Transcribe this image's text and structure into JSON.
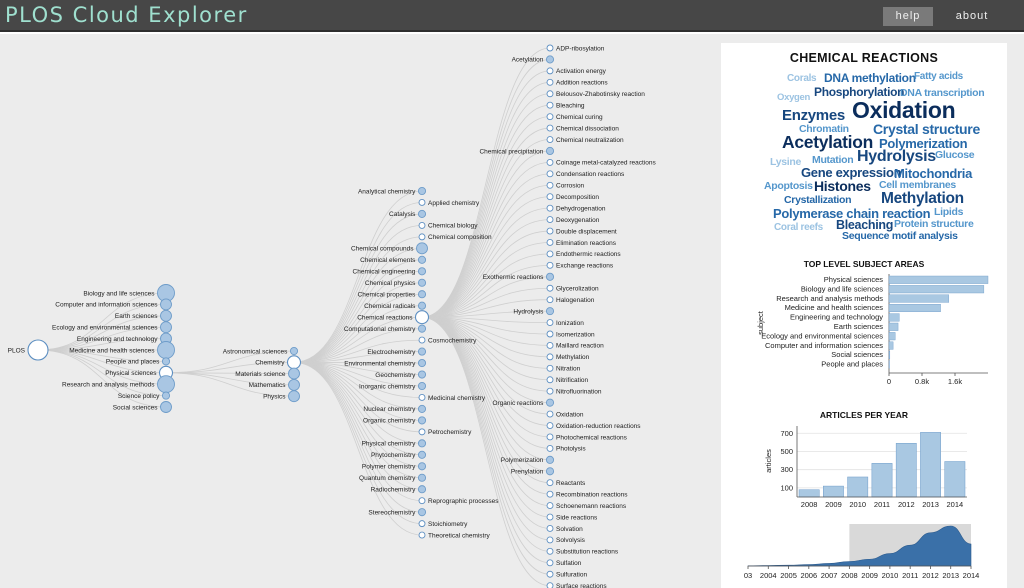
{
  "header": {
    "app_title": "PLOS Cloud Explorer",
    "nav": {
      "help": "help",
      "about": "about"
    }
  },
  "tree": {
    "root": {
      "label": "PLOS"
    },
    "level1": [
      {
        "label": "Biology and life sciences",
        "size": "xl"
      },
      {
        "label": "Computer and information sciences",
        "size": "md"
      },
      {
        "label": "Earth sciences",
        "size": "md"
      },
      {
        "label": "Ecology and environmental sciences",
        "size": "md"
      },
      {
        "label": "Engineering and technology",
        "size": "md"
      },
      {
        "label": "Medicine and health sciences",
        "size": "xl"
      },
      {
        "label": "People and places",
        "size": "sm"
      },
      {
        "label": "Physical sciences",
        "size": "open"
      },
      {
        "label": "Research and analysis methods",
        "size": "xl"
      },
      {
        "label": "Science policy",
        "size": "sm"
      },
      {
        "label": "Social sciences",
        "size": "md"
      }
    ],
    "level2": [
      {
        "label": "Astronomical sciences",
        "size": "sm"
      },
      {
        "label": "Chemistry",
        "size": "open"
      },
      {
        "label": "Materials science",
        "size": "md"
      },
      {
        "label": "Mathematics",
        "size": "md"
      },
      {
        "label": "Physics",
        "size": "md"
      }
    ],
    "level3": [
      {
        "label": "Analytical chemistry",
        "side": "L",
        "size": "sm"
      },
      {
        "label": "Applied chemistry",
        "side": "R",
        "size": "leaf"
      },
      {
        "label": "Catalysis",
        "side": "L",
        "size": "sm"
      },
      {
        "label": "Chemical biology",
        "side": "R",
        "size": "leaf"
      },
      {
        "label": "Chemical composition",
        "side": "R",
        "size": "leaf"
      },
      {
        "label": "Chemical compounds",
        "side": "L",
        "size": "md"
      },
      {
        "label": "Chemical elements",
        "side": "L",
        "size": "sm"
      },
      {
        "label": "Chemical engineering",
        "side": "L",
        "size": "sm"
      },
      {
        "label": "Chemical physics",
        "side": "L",
        "size": "sm"
      },
      {
        "label": "Chemical properties",
        "side": "L",
        "size": "sm"
      },
      {
        "label": "Chemical radicals",
        "side": "L",
        "size": "sm"
      },
      {
        "label": "Chemical reactions",
        "side": "L",
        "size": "open"
      },
      {
        "label": "Computational chemistry",
        "side": "L",
        "size": "sm"
      },
      {
        "label": "Cosmochemistry",
        "side": "R",
        "size": "leaf"
      },
      {
        "label": "Electrochemistry",
        "side": "L",
        "size": "sm"
      },
      {
        "label": "Environmental chemistry",
        "side": "L",
        "size": "sm"
      },
      {
        "label": "Geochemistry",
        "side": "L",
        "size": "sm"
      },
      {
        "label": "Inorganic chemistry",
        "side": "L",
        "size": "sm"
      },
      {
        "label": "Medicinal chemistry",
        "side": "R",
        "size": "leaf"
      },
      {
        "label": "Nuclear chemistry",
        "side": "L",
        "size": "sm"
      },
      {
        "label": "Organic chemistry",
        "side": "L",
        "size": "sm"
      },
      {
        "label": "Petrochemistry",
        "side": "R",
        "size": "leaf"
      },
      {
        "label": "Physical chemistry",
        "side": "L",
        "size": "sm"
      },
      {
        "label": "Phytochemistry",
        "side": "L",
        "size": "sm"
      },
      {
        "label": "Polymer chemistry",
        "side": "L",
        "size": "sm"
      },
      {
        "label": "Quantum chemistry",
        "side": "L",
        "size": "sm"
      },
      {
        "label": "Radiochemistry",
        "side": "L",
        "size": "sm"
      },
      {
        "label": "Reprographic processes",
        "side": "R",
        "size": "leaf"
      },
      {
        "label": "Stereochemistry",
        "side": "L",
        "size": "sm"
      },
      {
        "label": "Stoichiometry",
        "side": "R",
        "size": "leaf"
      },
      {
        "label": "Theoretical chemistry",
        "side": "R",
        "size": "leaf"
      }
    ],
    "level4": [
      {
        "label": "ADP-ribosylation",
        "side": "R",
        "size": "leaf"
      },
      {
        "label": "Acetylation",
        "side": "L",
        "size": "sm"
      },
      {
        "label": "Activation energy",
        "side": "R",
        "size": "leaf"
      },
      {
        "label": "Addition reactions",
        "side": "R",
        "size": "leaf"
      },
      {
        "label": "Belousov-Zhabotinsky reaction",
        "side": "R",
        "size": "leaf"
      },
      {
        "label": "Bleaching",
        "side": "R",
        "size": "leaf"
      },
      {
        "label": "Chemical curing",
        "side": "R",
        "size": "leaf"
      },
      {
        "label": "Chemical dissociation",
        "side": "R",
        "size": "leaf"
      },
      {
        "label": "Chemical neutralization",
        "side": "R",
        "size": "leaf"
      },
      {
        "label": "Chemical precipitation",
        "side": "L",
        "size": "sm"
      },
      {
        "label": "Coinage metal-catalyzed reactions",
        "side": "R",
        "size": "leaf"
      },
      {
        "label": "Condensation reactions",
        "side": "R",
        "size": "leaf"
      },
      {
        "label": "Corrosion",
        "side": "R",
        "size": "leaf"
      },
      {
        "label": "Decomposition",
        "side": "R",
        "size": "leaf"
      },
      {
        "label": "Dehydrogenation",
        "side": "R",
        "size": "leaf"
      },
      {
        "label": "Deoxygenation",
        "side": "R",
        "size": "leaf"
      },
      {
        "label": "Double displacement",
        "side": "R",
        "size": "leaf"
      },
      {
        "label": "Elimination reactions",
        "side": "R",
        "size": "leaf"
      },
      {
        "label": "Endothermic reactions",
        "side": "R",
        "size": "leaf"
      },
      {
        "label": "Exchange reactions",
        "side": "R",
        "size": "leaf"
      },
      {
        "label": "Exothermic reactions",
        "side": "L",
        "size": "sm"
      },
      {
        "label": "Glycerolization",
        "side": "R",
        "size": "leaf"
      },
      {
        "label": "Halogenation",
        "side": "R",
        "size": "leaf"
      },
      {
        "label": "Hydrolysis",
        "side": "L",
        "size": "sm"
      },
      {
        "label": "Ionization",
        "side": "R",
        "size": "leaf"
      },
      {
        "label": "Isomerization",
        "side": "R",
        "size": "leaf"
      },
      {
        "label": "Maillard reaction",
        "side": "R",
        "size": "leaf"
      },
      {
        "label": "Methylation",
        "side": "R",
        "size": "leaf"
      },
      {
        "label": "Nitration",
        "side": "R",
        "size": "leaf"
      },
      {
        "label": "Nitrification",
        "side": "R",
        "size": "leaf"
      },
      {
        "label": "Nitrofluorination",
        "side": "R",
        "size": "leaf"
      },
      {
        "label": "Organic reactions",
        "side": "L",
        "size": "sm"
      },
      {
        "label": "Oxidation",
        "side": "R",
        "size": "leaf"
      },
      {
        "label": "Oxidation-reduction reactions",
        "side": "R",
        "size": "leaf"
      },
      {
        "label": "Photochemical reactions",
        "side": "R",
        "size": "leaf"
      },
      {
        "label": "Photolysis",
        "side": "R",
        "size": "leaf"
      },
      {
        "label": "Polymerization",
        "side": "L",
        "size": "sm"
      },
      {
        "label": "Prenylation",
        "side": "L",
        "size": "sm"
      },
      {
        "label": "Reactants",
        "side": "R",
        "size": "leaf"
      },
      {
        "label": "Recombination reactions",
        "side": "R",
        "size": "leaf"
      },
      {
        "label": "Schoenemann reactions",
        "side": "R",
        "size": "leaf"
      },
      {
        "label": "Side reactions",
        "side": "R",
        "size": "leaf"
      },
      {
        "label": "Solvation",
        "side": "R",
        "size": "leaf"
      },
      {
        "label": "Solvolysis",
        "side": "R",
        "size": "leaf"
      },
      {
        "label": "Substitution reactions",
        "side": "R",
        "size": "leaf"
      },
      {
        "label": "Sulfation",
        "side": "R",
        "size": "leaf"
      },
      {
        "label": "Sulfuration",
        "side": "R",
        "size": "leaf"
      },
      {
        "label": "Surface reactions",
        "side": "R",
        "size": "leaf"
      }
    ]
  },
  "panel": {
    "cloud_title": "CHEMICAL REACTIONS",
    "cloud_words": [
      {
        "text": "Corals",
        "shade": 4
      },
      {
        "text": "DNA methylation",
        "shade": 2
      },
      {
        "text": "Fatty acids",
        "shade": 3
      },
      {
        "text": "Oxygen",
        "shade": 4
      },
      {
        "text": "Phosphorylation",
        "shade": 1
      },
      {
        "text": "DNA transcription",
        "shade": 3
      },
      {
        "text": "Enzymes",
        "shade": 1
      },
      {
        "text": "Oxidation",
        "shade": 0
      },
      {
        "text": "Chromatin",
        "shade": 3
      },
      {
        "text": "Crystal structure",
        "shade": 2
      },
      {
        "text": "Acetylation",
        "shade": 0
      },
      {
        "text": "Polymerization",
        "shade": 2
      },
      {
        "text": "Lysine",
        "shade": 4
      },
      {
        "text": "Mutation",
        "shade": 3
      },
      {
        "text": "Hydrolysis",
        "shade": 1
      },
      {
        "text": "Glucose",
        "shade": 3
      },
      {
        "text": "Gene expression",
        "shade": 1
      },
      {
        "text": "Mitochondria",
        "shade": 2
      },
      {
        "text": "Apoptosis",
        "shade": 3
      },
      {
        "text": "Histones",
        "shade": 0
      },
      {
        "text": "Cell membranes",
        "shade": 3
      },
      {
        "text": "Crystallization",
        "shade": 2
      },
      {
        "text": "Methylation",
        "shade": 1
      },
      {
        "text": "Polymerase chain reaction",
        "shade": 2
      },
      {
        "text": "Lipids",
        "shade": 3
      },
      {
        "text": "Coral reefs",
        "shade": 4
      },
      {
        "text": "Bleaching",
        "shade": 1
      },
      {
        "text": "Protein structure",
        "shade": 3
      },
      {
        "text": "Sequence motif analysis",
        "shade": 2
      }
    ],
    "cloud_palette": [
      "#0b2d5c",
      "#17477f",
      "#2668a8",
      "#5597cc",
      "#9cc3e2"
    ],
    "subject_chart_title": "TOP LEVEL SUBJECT AREAS",
    "articles_chart_title": "ARTICLES PER YEAR"
  },
  "chart_data": [
    {
      "type": "bar",
      "orientation": "horizontal",
      "title": "TOP LEVEL SUBJECT AREAS",
      "ylabel": "subject",
      "xlabel": "",
      "categories": [
        "Physical sciences",
        "Biology and life sciences",
        "Research and analysis methods",
        "Medicine and health sciences",
        "Engineering and technology",
        "Earth sciences",
        "Ecology and environmental sciences",
        "Computer and information sciences",
        "Social sciences",
        "People and places"
      ],
      "values": [
        2400,
        2300,
        1450,
        1250,
        250,
        220,
        150,
        100,
        20,
        10
      ],
      "ticks": [
        "0",
        "0.8k",
        "1.6k"
      ],
      "xlim": [
        0,
        2400
      ],
      "color": "#a9c8e2"
    },
    {
      "type": "bar",
      "title": "ARTICLES PER YEAR",
      "ylabel": "articles",
      "xlabel": "",
      "categories": [
        "2008",
        "2009",
        "2010",
        "2011",
        "2012",
        "2013",
        "2014"
      ],
      "values": [
        80,
        120,
        220,
        370,
        590,
        710,
        390
      ],
      "yticks": [
        "0",
        "100",
        "200",
        "300",
        "400",
        "500",
        "600",
        "700"
      ],
      "ylim": [
        0,
        780
      ],
      "grid": true,
      "color": "#a9c8e2"
    },
    {
      "type": "area",
      "title": "",
      "xlabel": "",
      "ylabel": "",
      "x": [
        "2003",
        "2004",
        "2005",
        "2006",
        "2007",
        "2008",
        "2009",
        "2010",
        "2011",
        "2012",
        "2013",
        "2014"
      ],
      "values": [
        3,
        8,
        15,
        25,
        45,
        80,
        120,
        220,
        370,
        590,
        710,
        390
      ],
      "ticks": [
        "03",
        "2004",
        "2005",
        "2006",
        "2007",
        "2008",
        "2009",
        "2010",
        "2011",
        "2012",
        "2013",
        "2014"
      ],
      "brush_range": [
        "2008",
        "2014"
      ],
      "color": "#3a70a8"
    }
  ]
}
